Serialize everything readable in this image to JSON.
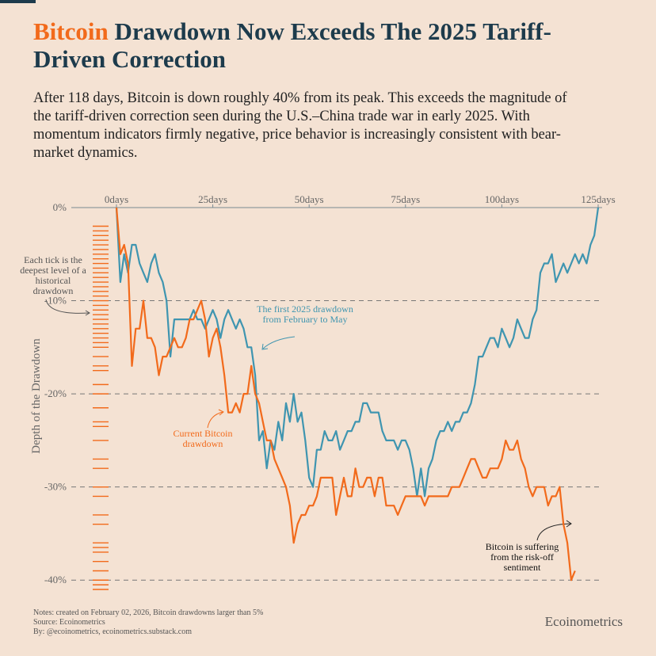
{
  "chart_data": {
    "type": "line",
    "title_highlight": "Bitcoin",
    "title": "Drawdown Now Exceeds The 2025 Tariff-Driven Correction",
    "subtitle": "After 118 days, Bitcoin is down roughly 40% from its peak. This exceeds the magnitude of the tariff-driven correction seen during the U.S.–China trade war in early 2025. With momentum indicators firmly negative, price behavior is increasingly consistent with bear-market dynamics.",
    "y_label": "Depth of the Drawdown",
    "xlim": [
      0,
      125
    ],
    "xticks": [
      {
        "value": 0,
        "label": "0days"
      },
      {
        "value": 25,
        "label": "25days"
      },
      {
        "value": 50,
        "label": "50days"
      },
      {
        "value": 75,
        "label": "75days"
      },
      {
        "value": 100,
        "label": "100days"
      },
      {
        "value": 125,
        "label": "125days"
      }
    ],
    "ylim": [
      -41,
      0
    ],
    "yticks": [
      {
        "value": 0,
        "label": "0%"
      },
      {
        "value": -10,
        "label": "-10%"
      },
      {
        "value": -20,
        "label": "-20%"
      },
      {
        "value": -30,
        "label": "-30%"
      },
      {
        "value": -40,
        "label": "-40%"
      }
    ],
    "grid": true,
    "x": [
      0,
      1,
      2,
      3,
      4,
      5,
      6,
      7,
      8,
      9,
      10,
      11,
      12,
      13,
      14,
      15,
      16,
      17,
      18,
      19,
      20,
      21,
      22,
      23,
      24,
      25,
      26,
      27,
      28,
      29,
      30,
      31,
      32,
      33,
      34,
      35,
      36,
      37,
      38,
      39,
      40,
      41,
      42,
      43,
      44,
      45,
      46,
      47,
      48,
      49,
      50,
      51,
      52,
      53,
      54,
      55,
      56,
      57,
      58,
      59,
      60,
      61,
      62,
      63,
      64,
      65,
      66,
      67,
      68,
      69,
      70,
      71,
      72,
      73,
      74,
      75,
      76,
      77,
      78,
      79,
      80,
      81,
      82,
      83,
      84,
      85,
      86,
      87,
      88,
      89,
      90,
      91,
      92,
      93,
      94,
      95,
      96,
      97,
      98,
      99,
      100,
      101,
      102,
      103,
      104,
      105,
      106,
      107,
      108,
      109,
      110,
      111,
      112,
      113,
      114,
      115,
      116,
      117,
      118,
      119,
      120,
      121,
      122,
      123,
      124,
      125
    ],
    "series": [
      {
        "name": "The first 2025 drawdown from February to May",
        "color": "#3f95b0",
        "values": [
          0,
          -8,
          -5,
          -7,
          -4,
          -4,
          -6,
          -7,
          -8,
          -6,
          -5,
          -7,
          -8,
          -10,
          -16,
          -12,
          -12,
          -12,
          -12,
          -12,
          -11,
          -12,
          -12,
          -13,
          -12,
          -11,
          -12,
          -14,
          -12,
          -11,
          -12,
          -13,
          -12,
          -13,
          -15,
          -15,
          -18,
          -25,
          -24,
          -28,
          -25,
          -26,
          -23,
          -25,
          -21,
          -23,
          -20,
          -23,
          -22,
          -25,
          -29,
          -30,
          -26,
          -26,
          -24,
          -25,
          -25,
          -24,
          -26,
          -25,
          -24,
          -24,
          -23,
          -23,
          -21,
          -21,
          -22,
          -22,
          -22,
          -24,
          -25,
          -25,
          -25,
          -26,
          -25,
          -25,
          -26,
          -28,
          -31,
          -28,
          -31,
          -28,
          -27,
          -25,
          -24,
          -24,
          -23,
          -24,
          -23,
          -23,
          -22,
          -22,
          -21,
          -19,
          -16,
          -16,
          -15,
          -14,
          -14,
          -15,
          -13,
          -14,
          -15,
          -14,
          -12,
          -13,
          -14,
          -14,
          -12,
          -11,
          -7,
          -6,
          -6,
          -5,
          -8,
          -7,
          -6,
          -7,
          -6,
          -5,
          -6,
          -5,
          -6,
          -4,
          -3,
          0
        ]
      },
      {
        "name": "Current Bitcoin drawdown",
        "color": "#f26a1b",
        "values": [
          0,
          -5,
          -4,
          -6,
          -17,
          -13,
          -13,
          -10,
          -14,
          -14,
          -15,
          -18,
          -16,
          -16,
          -15,
          -14,
          -15,
          -15,
          -14,
          -12,
          -12,
          -11,
          -10,
          -12,
          -16,
          -14,
          -13,
          -15,
          -18,
          -22,
          -22,
          -21,
          -22,
          -20,
          -20,
          -17,
          -20,
          -21,
          -23,
          -25,
          -25,
          -27,
          -28,
          -29,
          -30,
          -32,
          -36,
          -34,
          -33,
          -33,
          -32,
          -32,
          -31,
          -29,
          -29,
          -29,
          -29,
          -33,
          -31,
          -29,
          -31,
          -31,
          -28,
          -30,
          -30,
          -29,
          -29,
          -31,
          -29,
          -29,
          -32,
          -32,
          -32,
          -33,
          -32,
          -31,
          -31,
          -31,
          -31,
          -31,
          -32,
          -31,
          -31,
          -31,
          -31,
          -31,
          -31,
          -30,
          -30,
          -30,
          -29,
          -28,
          -27,
          -27,
          -28,
          -29,
          -29,
          -28,
          -28,
          -28,
          -27,
          -25,
          -26,
          -26,
          -25,
          -27,
          -28,
          -30,
          -31,
          -30,
          -30,
          -30,
          -32,
          -31,
          -31,
          -30,
          -34,
          -36,
          -40,
          -39,
          null,
          null,
          null,
          null,
          null,
          null
        ]
      }
    ],
    "historical_ticks": {
      "color": "#f26a1b",
      "values": [
        -2,
        -2.5,
        -3,
        -3.5,
        -4,
        -4.5,
        -5,
        -5.5,
        -6,
        -6.5,
        -7,
        -7.5,
        -8,
        -8.5,
        -9,
        -9.5,
        -10,
        -10.5,
        -11,
        -11.5,
        -12,
        -12.5,
        -13,
        -13.5,
        -14,
        -14.5,
        -15,
        -16,
        -17,
        -17.5,
        -19,
        -20,
        -21.5,
        -23,
        -23.5,
        -25,
        -27,
        -28,
        -30,
        -31,
        -33,
        -34,
        -36,
        -36.5,
        -37,
        -38,
        -39,
        -40,
        -40.5,
        -41
      ]
    },
    "annotations": [
      "Each tick is the deepest level of a historical drawdown",
      "Bitcoin is suffering from the risk-off sentiment"
    ],
    "notes": [
      "Notes: created on February 02, 2026, Bitcoin drawdowns larger than 5%",
      "Source: Ecoinometrics",
      "By: @ecoinometrics, ecoinometrics.substack.com"
    ],
    "brand": "Ecoinometrics"
  }
}
